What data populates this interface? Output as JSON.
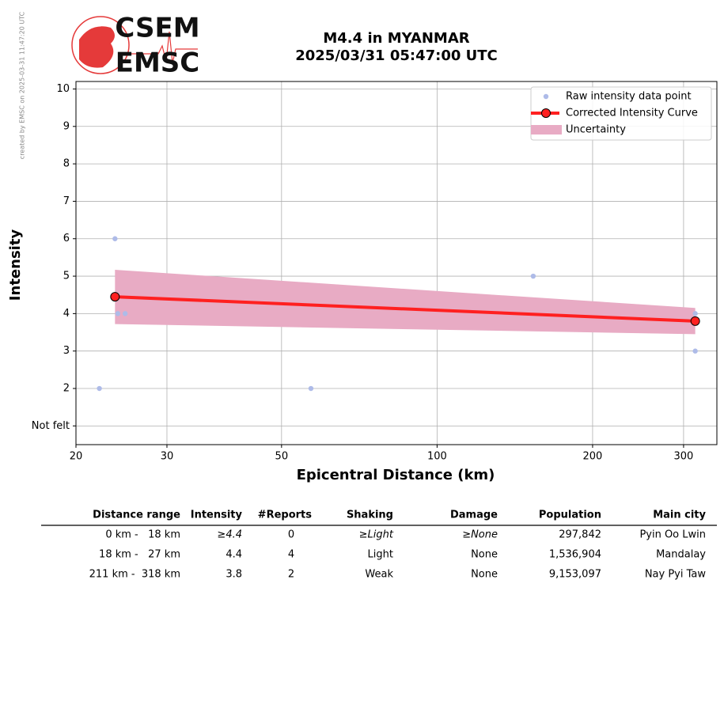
{
  "credit": "created by EMSC on 2025-03-31 11:47:20 UTC",
  "logo": {
    "top": "CSEM",
    "bottom": "EMSC"
  },
  "chart_data": {
    "type": "line",
    "title": "M4.4 in MYANMAR",
    "subtitle": "2025/03/31 05:47:00 UTC",
    "x_label": "Epicentral Distance (km)",
    "y_label": "Intensity",
    "xscale": "log",
    "xlim": [
      20,
      348
    ],
    "xticks": [
      20,
      30,
      50,
      100,
      200,
      300
    ],
    "ylim": [
      0.5,
      10.2
    ],
    "yticks": [
      {
        "value": 1,
        "label": "Not felt"
      },
      2,
      3,
      4,
      5,
      6,
      7,
      8,
      9,
      10
    ],
    "grid": true,
    "legend": "upper right",
    "series": [
      {
        "name": "Raw intensity data point",
        "color": "#aebbe8",
        "mode": "markers",
        "x": [
          23.8,
          22.2,
          24.1,
          24.9,
          57.0,
          153.5,
          316,
          316
        ],
        "values": [
          6,
          2,
          4,
          4,
          2,
          5,
          3,
          4
        ]
      },
      {
        "name": "Corrected Intensity Curve",
        "color": "#ff2020",
        "mode": "line",
        "x": [
          23.8,
          316
        ],
        "values": [
          4.45,
          3.8
        ]
      },
      {
        "name": "Uncertainty",
        "color": "#e8abc4",
        "mode": "band",
        "x": [
          23.8,
          316
        ],
        "lower": [
          3.72,
          3.45
        ],
        "upper": [
          5.17,
          4.15
        ]
      }
    ]
  },
  "table": {
    "header": [
      "Distance range",
      "Intensity",
      "#Reports",
      "Shaking",
      "Damage",
      "Population",
      "Main city"
    ],
    "rows": [
      [
        "0 km -   18 km",
        "≥4.4",
        "0",
        "≥Light",
        "≥None",
        "297,842",
        "Pyin Oo Lwin"
      ],
      [
        "18 km -   27 km",
        "4.4",
        "4",
        "Light",
        "None",
        "1,536,904",
        "Mandalay"
      ],
      [
        "211 km -  318 km",
        "3.8",
        "2",
        "Weak",
        "None",
        "9,153,097",
        "Nay Pyi Taw"
      ]
    ]
  }
}
